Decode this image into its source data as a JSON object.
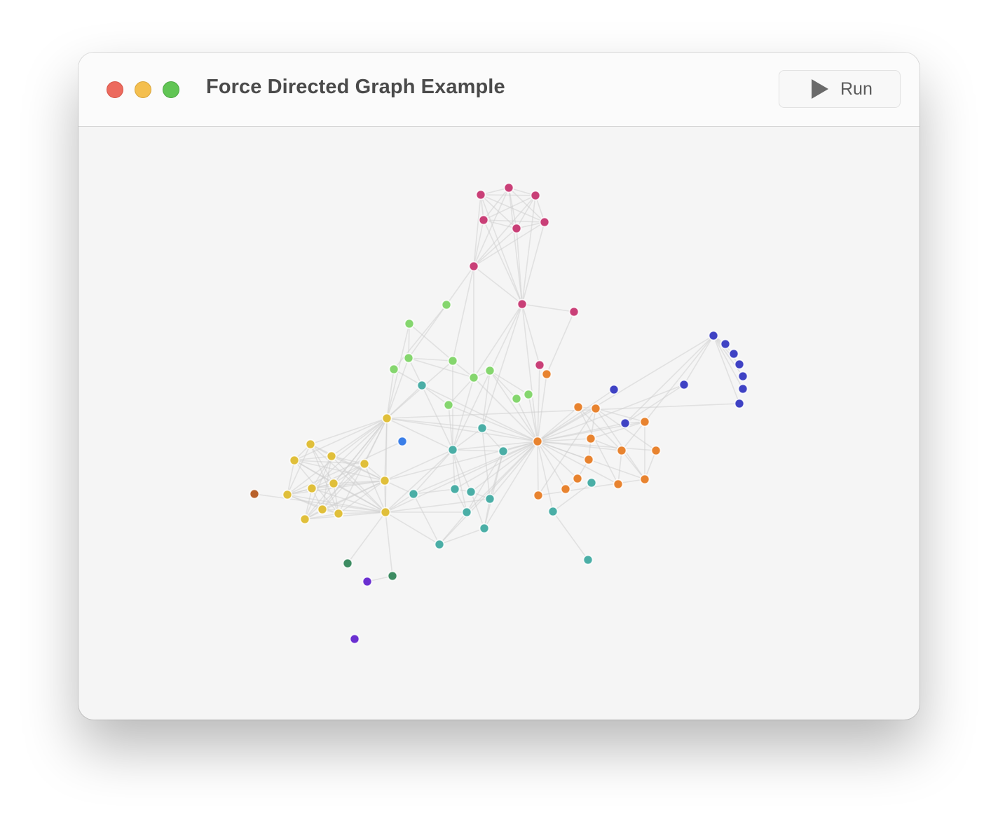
{
  "window": {
    "title": "Force Directed Graph Example",
    "run_label": "Run"
  },
  "icons": {
    "close": "close-traffic-light",
    "minimize": "minimize-traffic-light",
    "zoom": "zoom-traffic-light",
    "run": "play-icon"
  },
  "colors": {
    "close": "#ec6a5e",
    "minimize": "#f4bf4f",
    "zoom": "#61c554",
    "link": "#d0d0d0",
    "groups": {
      "magenta": "#c93f77",
      "lightgreen": "#85d66e",
      "teal": "#4aaea6",
      "yellow": "#e0bf3a",
      "orange": "#e8832f",
      "indigo": "#3f42c4",
      "blue": "#3a7ee8",
      "brown": "#b8602a",
      "darkgreen": "#3d8c62",
      "purple": "#6a2fd0"
    }
  }
}
